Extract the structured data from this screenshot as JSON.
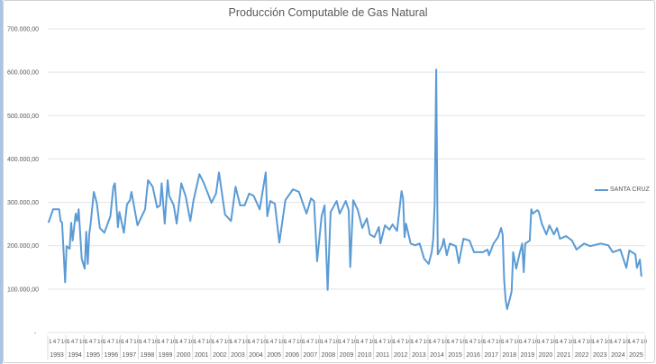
{
  "chart_data": {
    "type": "line",
    "title": "Producción Computable de Gas Natural",
    "xlabel": "",
    "ylabel": "",
    "ylim": [
      0,
      700000
    ],
    "y_ticks": [
      0,
      100000,
      200000,
      300000,
      400000,
      500000,
      600000,
      700000
    ],
    "y_tick_labels": [
      "-",
      "100.000,00",
      "200.000,00",
      "300.000,00",
      "400.000,00",
      "500.000,00",
      "600.000,00",
      "700.000,00"
    ],
    "x_month_labels": [
      "1",
      "4",
      "7",
      "10"
    ],
    "x_years": [
      "1993",
      "1994",
      "1995",
      "1996",
      "1997",
      "1998",
      "1999",
      "2000",
      "2001",
      "2002",
      "2003",
      "2004",
      "2005",
      "2006",
      "2007",
      "2008",
      "2009",
      "2010",
      "2011",
      "2012",
      "2013",
      "2014",
      "2015",
      "2016",
      "2017",
      "2018",
      "2019",
      "2020",
      "2021",
      "2022",
      "2023",
      "2024",
      "2025"
    ],
    "grid": true,
    "legend_position": "right",
    "series": [
      {
        "name": "SANTA CRUZ",
        "color": "#5b9bd5",
        "points": [
          [
            "1993-01",
            253000
          ],
          [
            "1993-04",
            284000
          ],
          [
            "1993-08",
            284000
          ],
          [
            "1993-09",
            257000
          ],
          [
            "1993-10",
            253000
          ],
          [
            "1993-12",
            116000
          ],
          [
            "1994-01",
            199000
          ],
          [
            "1994-03",
            193000
          ],
          [
            "1994-04",
            253000
          ],
          [
            "1994-05",
            212000
          ],
          [
            "1994-07",
            274000
          ],
          [
            "1994-08",
            257000
          ],
          [
            "1994-09",
            284000
          ],
          [
            "1994-11",
            170000
          ],
          [
            "1995-01",
            147000
          ],
          [
            "1995-02",
            232000
          ],
          [
            "1995-03",
            158000
          ],
          [
            "1995-04",
            226000
          ],
          [
            "1995-05",
            253000
          ],
          [
            "1995-07",
            324000
          ],
          [
            "1995-09",
            299000
          ],
          [
            "1995-11",
            241000
          ],
          [
            "1996-02",
            230000
          ],
          [
            "1996-06",
            268000
          ],
          [
            "1996-08",
            336000
          ],
          [
            "1996-09",
            344000
          ],
          [
            "1996-11",
            243000
          ],
          [
            "1996-12",
            278000
          ],
          [
            "1997-03",
            230000
          ],
          [
            "1997-05",
            295000
          ],
          [
            "1997-07",
            305000
          ],
          [
            "1997-08",
            324000
          ],
          [
            "1997-12",
            247000
          ],
          [
            "1998-05",
            284000
          ],
          [
            "1998-07",
            351000
          ],
          [
            "1998-10",
            336000
          ],
          [
            "1999-01",
            288000
          ],
          [
            "1999-03",
            293000
          ],
          [
            "1999-04",
            344000
          ],
          [
            "1999-06",
            251000
          ],
          [
            "1999-08",
            351000
          ],
          [
            "1999-09",
            315000
          ],
          [
            "1999-12",
            293000
          ],
          [
            "2000-02",
            251000
          ],
          [
            "2000-05",
            344000
          ],
          [
            "2000-08",
            313000
          ],
          [
            "2000-11",
            257000
          ],
          [
            "2001-01",
            303000
          ],
          [
            "2001-05",
            365000
          ],
          [
            "2001-08",
            344000
          ],
          [
            "2002-01",
            299000
          ],
          [
            "2002-04",
            320000
          ],
          [
            "2002-06",
            369000
          ],
          [
            "2002-10",
            272000
          ],
          [
            "2003-02",
            257000
          ],
          [
            "2003-05",
            336000
          ],
          [
            "2003-08",
            293000
          ],
          [
            "2003-11",
            293000
          ],
          [
            "2004-02",
            320000
          ],
          [
            "2004-05",
            315000
          ],
          [
            "2004-09",
            284000
          ],
          [
            "2005-01",
            369000
          ],
          [
            "2005-02",
            268000
          ],
          [
            "2005-04",
            303000
          ],
          [
            "2005-07",
            297000
          ],
          [
            "2005-10",
            207000
          ],
          [
            "2006-02",
            305000
          ],
          [
            "2006-07",
            330000
          ],
          [
            "2006-11",
            324000
          ],
          [
            "2007-04",
            274000
          ],
          [
            "2007-07",
            309000
          ],
          [
            "2007-09",
            303000
          ],
          [
            "2007-11",
            164000
          ],
          [
            "2008-02",
            268000
          ],
          [
            "2008-04",
            293000
          ],
          [
            "2008-06",
            98000
          ],
          [
            "2008-08",
            278000
          ],
          [
            "2008-12",
            303000
          ],
          [
            "2009-02",
            274000
          ],
          [
            "2009-06",
            303000
          ],
          [
            "2009-08",
            282000
          ],
          [
            "2009-09",
            151000
          ],
          [
            "2009-11",
            305000
          ],
          [
            "2010-02",
            282000
          ],
          [
            "2010-05",
            241000
          ],
          [
            "2010-08",
            263000
          ],
          [
            "2010-10",
            226000
          ],
          [
            "2011-01",
            220000
          ],
          [
            "2011-04",
            243000
          ],
          [
            "2011-05",
            205000
          ],
          [
            "2011-08",
            247000
          ],
          [
            "2011-11",
            237000
          ],
          [
            "2012-01",
            249000
          ],
          [
            "2012-04",
            234000
          ],
          [
            "2012-07",
            326000
          ],
          [
            "2012-08",
            309000
          ],
          [
            "2012-09",
            220000
          ],
          [
            "2012-10",
            251000
          ],
          [
            "2013-01",
            205000
          ],
          [
            "2013-04",
            201000
          ],
          [
            "2013-07",
            205000
          ],
          [
            "2013-10",
            170000
          ],
          [
            "2014-01",
            158000
          ],
          [
            "2014-03",
            185000
          ],
          [
            "2014-04",
            216000
          ],
          [
            "2014-05",
            299000
          ],
          [
            "2014-06",
            606000
          ],
          [
            "2014-07",
            180000
          ],
          [
            "2014-10",
            199000
          ],
          [
            "2014-11",
            216000
          ],
          [
            "2015-01",
            178000
          ],
          [
            "2015-03",
            205000
          ],
          [
            "2015-07",
            199000
          ],
          [
            "2015-09",
            160000
          ],
          [
            "2015-12",
            216000
          ],
          [
            "2016-04",
            212000
          ],
          [
            "2016-07",
            185000
          ],
          [
            "2017-01",
            185000
          ],
          [
            "2017-04",
            191000
          ],
          [
            "2017-05",
            178000
          ],
          [
            "2017-08",
            205000
          ],
          [
            "2017-11",
            220000
          ],
          [
            "2018-01",
            241000
          ],
          [
            "2018-02",
            226000
          ],
          [
            "2018-03",
            122000
          ],
          [
            "2018-04",
            75000
          ],
          [
            "2018-05",
            54000
          ],
          [
            "2018-07",
            81000
          ],
          [
            "2018-08",
            95000
          ],
          [
            "2018-09",
            185000
          ],
          [
            "2018-11",
            147000
          ],
          [
            "2019-01",
            178000
          ],
          [
            "2019-03",
            205000
          ],
          [
            "2019-04",
            139000
          ],
          [
            "2019-05",
            205000
          ],
          [
            "2019-08",
            212000
          ],
          [
            "2019-09",
            284000
          ],
          [
            "2019-10",
            274000
          ],
          [
            "2020-01",
            282000
          ],
          [
            "2020-02",
            278000
          ],
          [
            "2020-04",
            251000
          ],
          [
            "2020-07",
            226000
          ],
          [
            "2020-09",
            247000
          ],
          [
            "2020-12",
            226000
          ],
          [
            "2021-02",
            241000
          ],
          [
            "2021-04",
            216000
          ],
          [
            "2021-08",
            222000
          ],
          [
            "2021-12",
            212000
          ],
          [
            "2022-03",
            191000
          ],
          [
            "2022-08",
            205000
          ],
          [
            "2022-12",
            199000
          ],
          [
            "2023-07",
            205000
          ],
          [
            "2023-12",
            201000
          ],
          [
            "2024-03",
            185000
          ],
          [
            "2024-08",
            191000
          ],
          [
            "2024-12",
            149000
          ],
          [
            "2025-02",
            189000
          ],
          [
            "2025-06",
            180000
          ],
          [
            "2025-07",
            149000
          ],
          [
            "2025-09",
            168000
          ],
          [
            "2025-10",
            129000
          ]
        ]
      }
    ]
  }
}
